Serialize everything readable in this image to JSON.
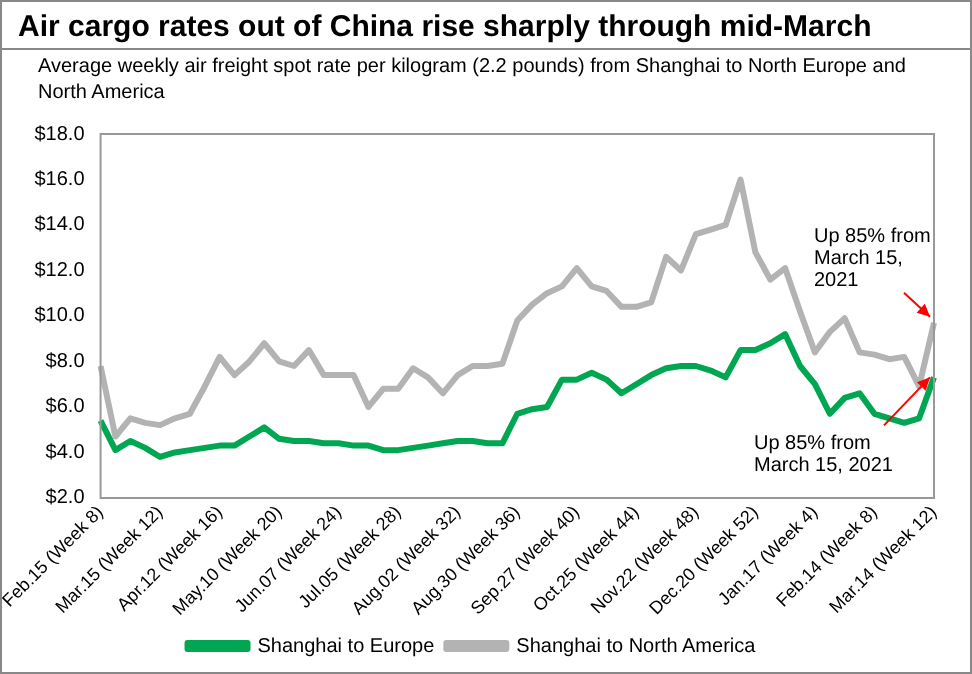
{
  "chart_data": {
    "type": "line",
    "title": "Air cargo rates out of China rise sharply through mid-March",
    "subtitle": "Average weekly air freight spot rate per kilogram (2.2 pounds) from Shanghai to North Europe and North America",
    "categories": [
      "Feb.15 (Week 8)",
      null,
      null,
      null,
      "Mar.15 (Week 12)",
      null,
      null,
      null,
      "Apr.12 (Week 16)",
      null,
      null,
      null,
      "May.10 (Week 20)",
      null,
      null,
      null,
      "Jun.07 (Week 24)",
      null,
      null,
      null,
      "Jul.05 (Week 28)",
      null,
      null,
      null,
      "Aug.02 (Week 32)",
      null,
      null,
      null,
      "Aug.30 (Week 36)",
      null,
      null,
      null,
      "Sep.27 (Week 40)",
      null,
      null,
      null,
      "Oct.25 (Week 44)",
      null,
      null,
      null,
      "Nov.22 (Week 48)",
      null,
      null,
      null,
      "Dec.20 (Week 52)",
      null,
      null,
      null,
      "Jan.17 (Week 4)",
      null,
      null,
      null,
      "Feb.14 (Week 8)",
      null,
      null,
      null,
      "Mar.14 (Week 12)"
    ],
    "series": [
      {
        "name": "Shanghai to Europe",
        "color": "#00a651",
        "values": [
          5.4,
          4.1,
          4.5,
          4.2,
          3.8,
          4.0,
          4.1,
          4.2,
          4.3,
          4.3,
          4.7,
          5.1,
          4.6,
          4.5,
          4.5,
          4.4,
          4.4,
          4.3,
          4.3,
          4.1,
          4.1,
          4.2,
          4.3,
          4.4,
          4.5,
          4.5,
          4.4,
          4.4,
          5.7,
          5.9,
          6.0,
          7.2,
          7.2,
          7.5,
          7.2,
          6.6,
          7.0,
          7.4,
          7.7,
          7.8,
          7.8,
          7.6,
          7.3,
          8.5,
          8.5,
          8.8,
          9.2,
          7.8,
          7.0,
          5.7,
          6.4,
          6.6,
          5.7,
          5.5,
          5.3,
          5.5,
          7.3
        ]
      },
      {
        "name": "Shanghai to North America",
        "color": "#b3b3b3",
        "values": [
          7.8,
          4.7,
          5.5,
          5.3,
          5.2,
          5.5,
          5.7,
          6.9,
          8.2,
          7.4,
          8.0,
          8.8,
          8.0,
          7.8,
          8.5,
          7.4,
          7.4,
          7.4,
          6.0,
          6.8,
          6.8,
          7.7,
          7.3,
          6.6,
          7.4,
          7.8,
          7.8,
          7.9,
          9.8,
          10.5,
          11.0,
          11.3,
          12.1,
          11.3,
          11.1,
          10.4,
          10.4,
          10.6,
          12.6,
          12.0,
          13.6,
          13.8,
          14.0,
          16.0,
          12.8,
          11.6,
          12.1,
          10.2,
          8.4,
          9.3,
          9.9,
          8.4,
          8.3,
          8.1,
          8.2,
          6.9,
          9.7
        ]
      }
    ],
    "ylim": [
      2,
      18
    ],
    "yticks": [
      {
        "value": 2,
        "label": "$2.0"
      },
      {
        "value": 4,
        "label": "$4.0"
      },
      {
        "value": 6,
        "label": "$6.0"
      },
      {
        "value": 8,
        "label": "$8.0"
      },
      {
        "value": 10,
        "label": "$10.0"
      },
      {
        "value": 12,
        "label": "$12.0"
      },
      {
        "value": 14,
        "label": "$14.0"
      },
      {
        "value": 16,
        "label": "$16.0"
      },
      {
        "value": 18,
        "label": "$18.0"
      }
    ],
    "annotations": [
      {
        "text": "Up 85% from March 15, 2021",
        "x": "Mar.14 (Week 12)",
        "y": 9.7
      },
      {
        "text": "Up 85% from March 15, 2021",
        "x": "Mar.14 (Week 12)",
        "y": 7.3
      }
    ],
    "grid": false,
    "legend": "bottom",
    "marker": "none",
    "line_style": "solid"
  }
}
